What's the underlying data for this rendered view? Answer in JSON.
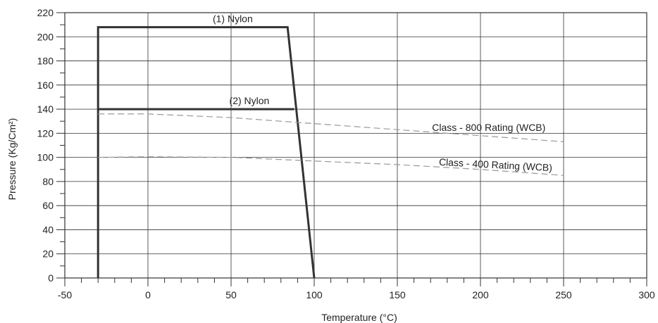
{
  "chart_data": {
    "type": "line",
    "title": "",
    "xlabel": "Temperature (°C)",
    "ylabel": "Pressure (Kg/Cm²)",
    "xlim": [
      -50,
      300
    ],
    "ylim": [
      0,
      220
    ],
    "x_ticks": [
      -50,
      0,
      50,
      100,
      150,
      200,
      250,
      300
    ],
    "y_ticks": [
      0,
      20,
      40,
      60,
      80,
      100,
      120,
      140,
      160,
      180,
      200,
      220
    ],
    "x_minor_step": 10,
    "y_minor_step": 10,
    "grid": true,
    "colors": {
      "line": "#333333",
      "dashed": "#999999",
      "grid": "#333333"
    },
    "series": [
      {
        "name": "(1) Nylon",
        "style": "solid",
        "points": [
          [
            -30,
            0
          ],
          [
            -30,
            208
          ],
          [
            84,
            208
          ],
          [
            100,
            0
          ]
        ]
      },
      {
        "name": "(2) Nylon",
        "style": "solid",
        "points": [
          [
            -30,
            140
          ],
          [
            88,
            140
          ]
        ]
      },
      {
        "name": "Class - 800 Rating (WCB)",
        "style": "dashed",
        "points": [
          [
            -30,
            136
          ],
          [
            0,
            136
          ],
          [
            50,
            133
          ],
          [
            100,
            128
          ],
          [
            150,
            123
          ],
          [
            200,
            118
          ],
          [
            250,
            113
          ]
        ]
      },
      {
        "name": "Class - 400 Rating (WCB)",
        "style": "dashed",
        "points": [
          [
            -30,
            100
          ],
          [
            0,
            100.5
          ],
          [
            50,
            100
          ],
          [
            100,
            97
          ],
          [
            150,
            94
          ],
          [
            200,
            90
          ],
          [
            250,
            85
          ]
        ]
      }
    ],
    "annotations": [
      {
        "text": "(1) Nylon",
        "x": 51,
        "y": 212
      },
      {
        "text": "(2) Nylon",
        "x": 61,
        "y": 144
      },
      {
        "text": "Class - 800 Rating (WCB)",
        "x": 205,
        "y": 122
      },
      {
        "text": "Class - 400 Rating (WCB)",
        "x": 209,
        "y": 91,
        "rotate": 3
      }
    ]
  }
}
